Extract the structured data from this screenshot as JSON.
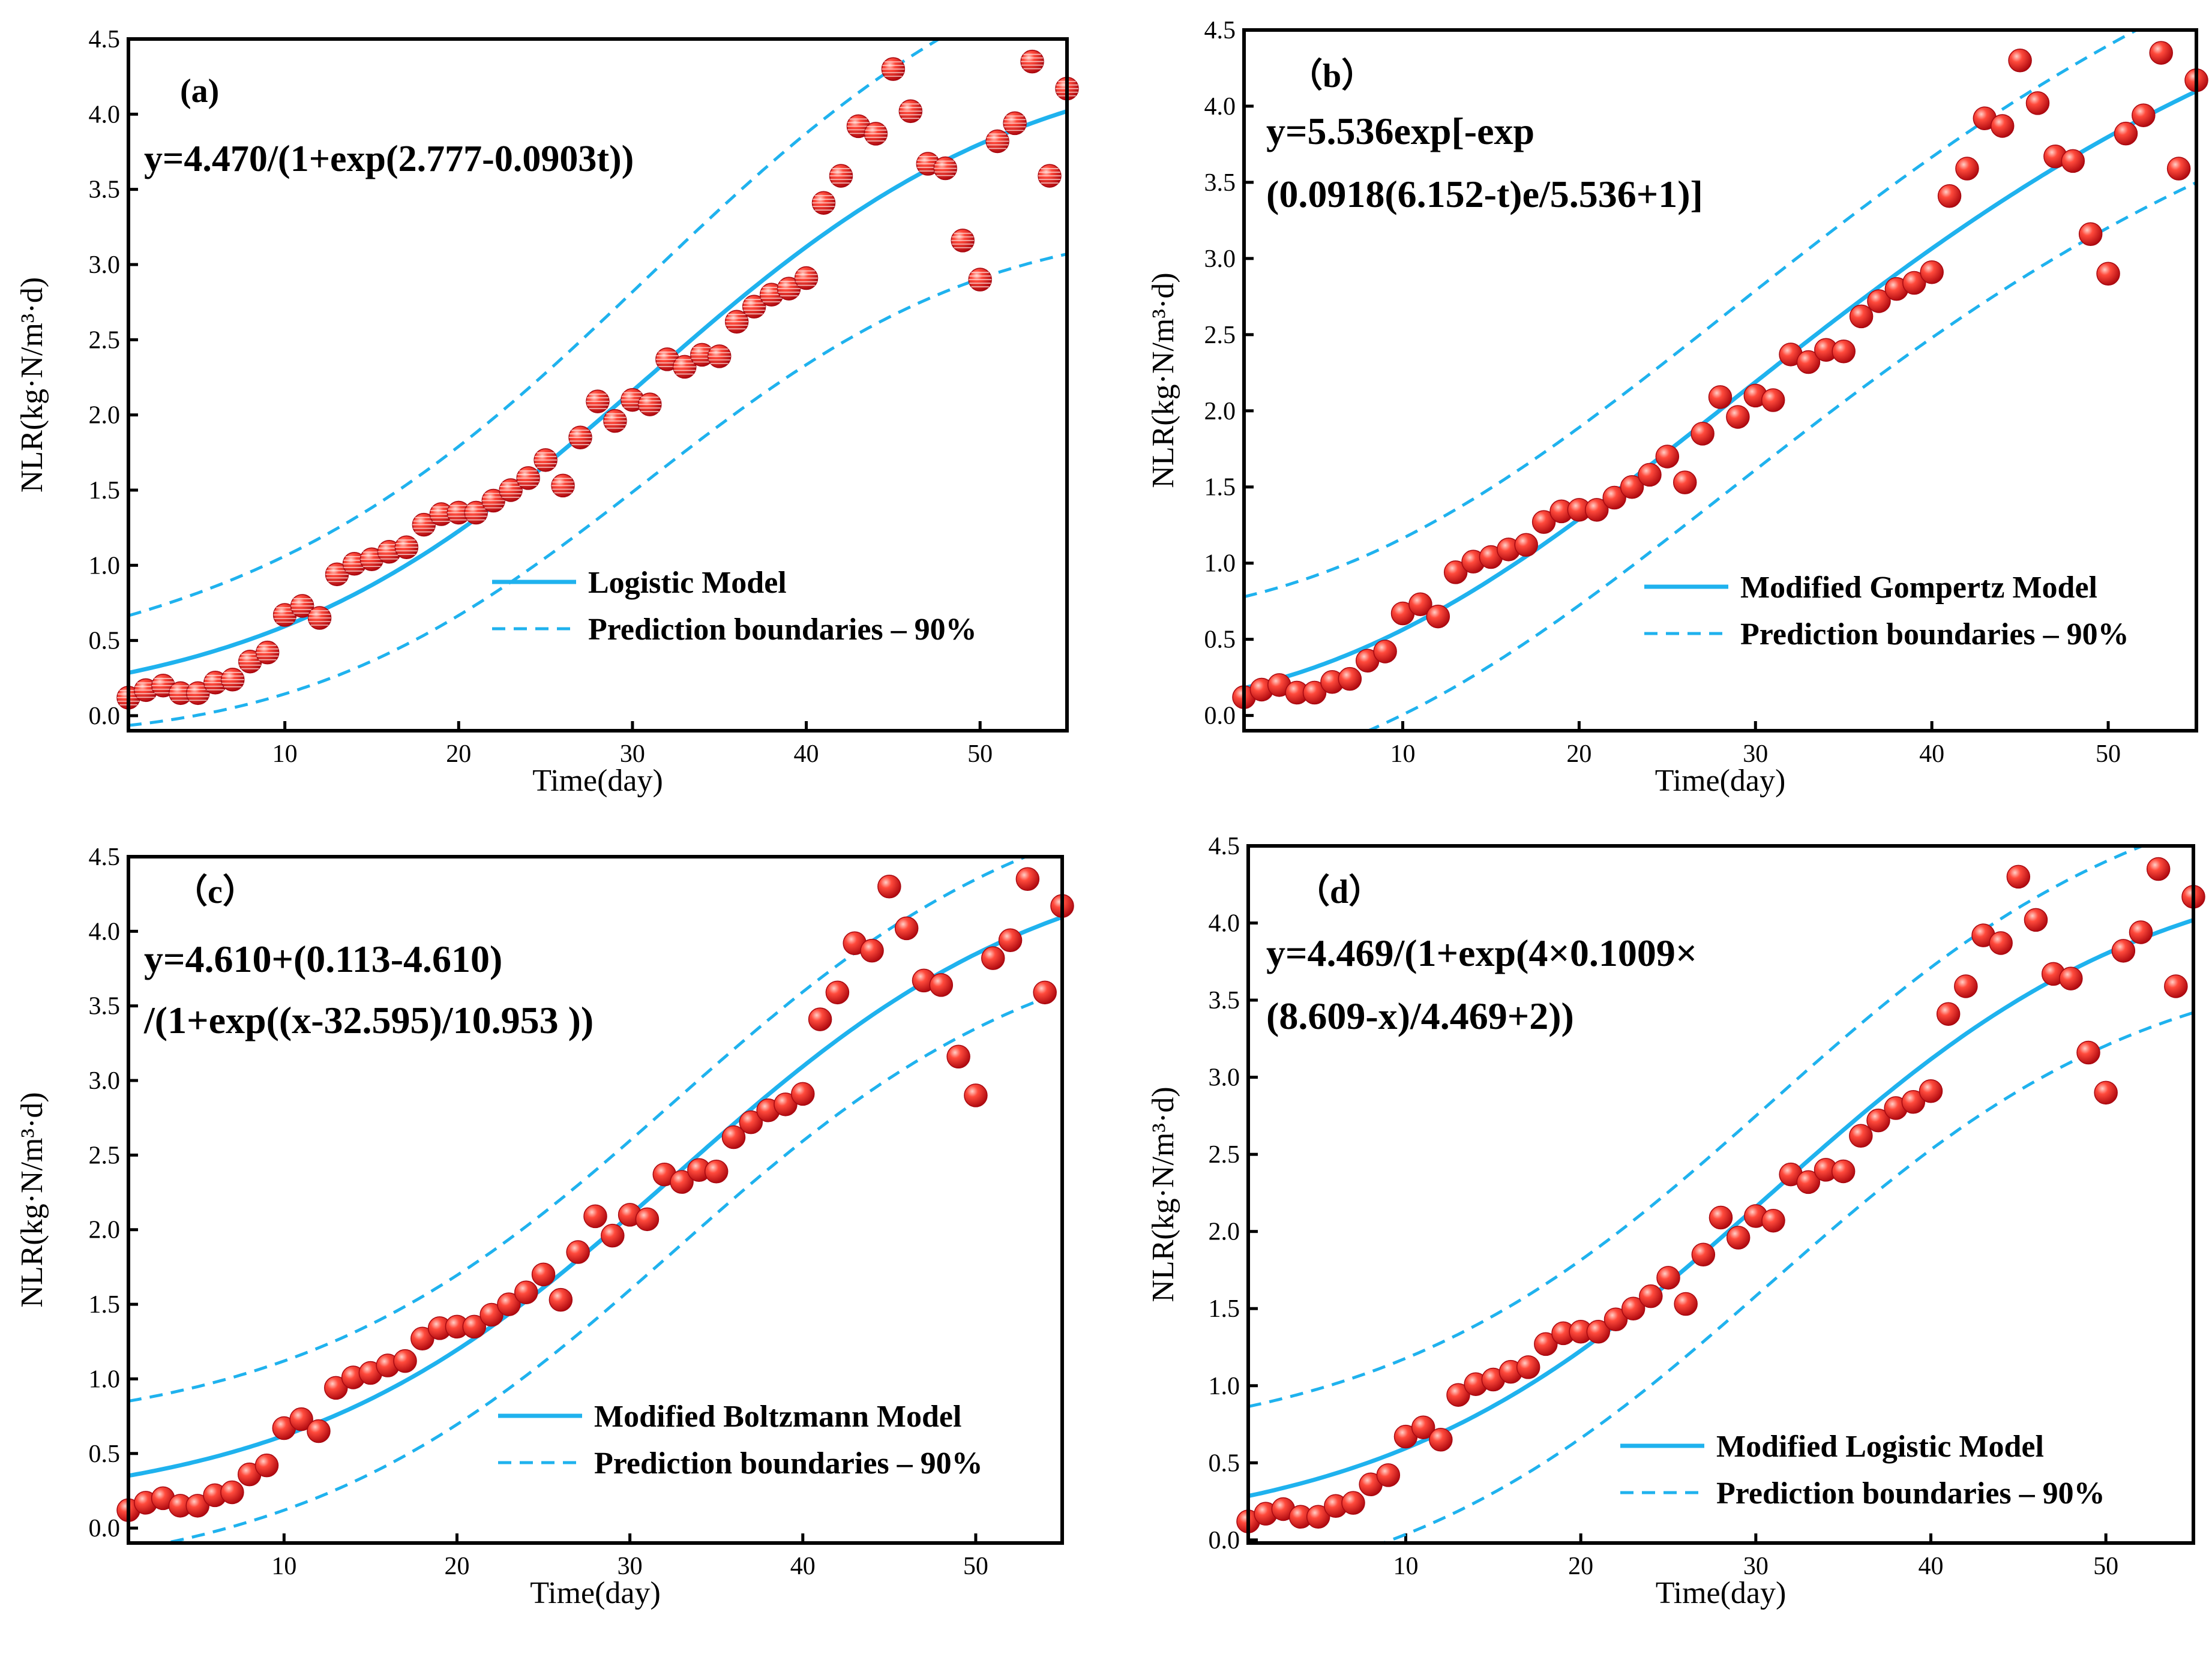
{
  "style": {
    "fit_color": "#1fb2ee",
    "point_color": "#e8151b",
    "point_highlight": "#ffb8b0"
  },
  "chart_data": [
    {
      "id": "a",
      "type": "scatter",
      "panel_label": "(a)",
      "equation_lines": [
        "y=4.470/(1+exp(2.777-0.0903t))"
      ],
      "xlabel": "Time(day)",
      "ylabel": "NLR(kg·N/m³·d)",
      "xlim": [
        1,
        55
      ],
      "ylim": [
        -0.1,
        4.5
      ],
      "xticks": [
        10,
        20,
        30,
        40,
        50
      ],
      "yticks": [
        "0.0",
        "0.5",
        "1.0",
        "1.5",
        "2.0",
        "2.5",
        "3.0",
        "3.5",
        "4.0",
        "4.5"
      ],
      "legend": [
        "Logistic Model",
        "Prediction boundaries – 90%"
      ],
      "legend_position": "lower-right",
      "model": {
        "kind": "logistic",
        "A": 4.47,
        "b": 2.777,
        "k": 0.0903
      },
      "bound_offsets": {
        "lo": [
          -0.35,
          -0.95
        ],
        "hi": [
          0.38,
          0.9
        ]
      },
      "x": [
        1,
        2,
        3,
        4,
        5,
        6,
        7,
        8,
        9,
        10,
        11,
        12,
        13,
        14,
        15,
        16,
        17,
        18,
        19,
        20,
        21,
        22,
        23,
        24,
        25,
        26,
        27,
        28,
        29,
        30,
        31,
        32,
        33,
        34,
        35,
        36,
        37,
        38,
        39,
        40,
        41,
        42,
        43,
        44,
        45,
        46,
        47,
        48,
        49,
        50,
        51,
        52,
        53,
        54,
        55
      ],
      "y": [
        0.12,
        0.17,
        0.2,
        0.15,
        0.15,
        0.22,
        0.24,
        0.36,
        0.42,
        0.67,
        0.73,
        0.65,
        0.94,
        1.01,
        1.04,
        1.09,
        1.12,
        1.27,
        1.34,
        1.35,
        1.35,
        1.43,
        1.5,
        1.58,
        1.7,
        1.53,
        1.85,
        2.09,
        1.96,
        2.1,
        2.07,
        2.37,
        2.32,
        2.4,
        2.39,
        2.62,
        2.72,
        2.8,
        2.84,
        2.91,
        3.41,
        3.59,
        3.92,
        3.87,
        4.3,
        4.02,
        3.67,
        3.64,
        3.16,
        2.9,
        3.82,
        3.94,
        4.35,
        3.59,
        4.17
      ]
    },
    {
      "id": "b",
      "type": "scatter",
      "panel_label": "（b）",
      "equation_lines": [
        "y=5.536exp[-exp",
        "(0.0918(6.152-t)e/5.536+1)]"
      ],
      "xlabel": "Time(day)",
      "ylabel": "NLR(kg·N/m³·d)",
      "xlim": [
        1,
        55
      ],
      "ylim": [
        -0.1,
        4.5
      ],
      "xticks": [
        10,
        20,
        30,
        40,
        50
      ],
      "yticks": [
        "0.0",
        "0.5",
        "1.0",
        "1.5",
        "2.0",
        "2.5",
        "3.0",
        "3.5",
        "4.0",
        "4.5"
      ],
      "legend": [
        "Modified Gompertz Model",
        "Prediction boundaries – 90%"
      ],
      "legend_position": "lower-right",
      "model": {
        "kind": "gompertz",
        "A": 5.536,
        "mu": 0.0918,
        "lambda": 6.152
      },
      "bound_offsets": {
        "lo": [
          -0.55,
          -0.6
        ],
        "hi": [
          0.6,
          0.6
        ]
      },
      "x": [
        1,
        2,
        3,
        4,
        5,
        6,
        7,
        8,
        9,
        10,
        11,
        12,
        13,
        14,
        15,
        16,
        17,
        18,
        19,
        20,
        21,
        22,
        23,
        24,
        25,
        26,
        27,
        28,
        29,
        30,
        31,
        32,
        33,
        34,
        35,
        36,
        37,
        38,
        39,
        40,
        41,
        42,
        43,
        44,
        45,
        46,
        47,
        48,
        49,
        50,
        51,
        52,
        53,
        54,
        55
      ],
      "y": [
        0.12,
        0.17,
        0.2,
        0.15,
        0.15,
        0.22,
        0.24,
        0.36,
        0.42,
        0.67,
        0.73,
        0.65,
        0.94,
        1.01,
        1.04,
        1.09,
        1.12,
        1.27,
        1.34,
        1.35,
        1.35,
        1.43,
        1.5,
        1.58,
        1.7,
        1.53,
        1.85,
        2.09,
        1.96,
        2.1,
        2.07,
        2.37,
        2.32,
        2.4,
        2.39,
        2.62,
        2.72,
        2.8,
        2.84,
        2.91,
        3.41,
        3.59,
        3.92,
        3.87,
        4.3,
        4.02,
        3.67,
        3.64,
        3.16,
        2.9,
        3.82,
        3.94,
        4.35,
        3.59,
        4.17
      ]
    },
    {
      "id": "c",
      "type": "scatter",
      "panel_label": "（c）",
      "equation_lines": [
        "y=4.610+(0.113-4.610)",
        "/(1+exp((x-32.595)/10.953 ))"
      ],
      "xlabel": "Time(day)",
      "ylabel": "NLR(kg·N/m³·d)",
      "xlim": [
        1,
        55
      ],
      "ylim": [
        -0.1,
        4.5
      ],
      "xticks": [
        10,
        20,
        30,
        40,
        50
      ],
      "yticks": [
        "0.0",
        "0.5",
        "1.0",
        "1.5",
        "2.0",
        "2.5",
        "3.0",
        "3.5",
        "4.0",
        "4.5"
      ],
      "legend": [
        "Modified Boltzmann Model",
        "Prediction boundaries – 90%"
      ],
      "legend_position": "lower-right",
      "model": {
        "kind": "boltzmann",
        "A1": 0.113,
        "A2": 4.61,
        "x0": 32.595,
        "dx": 10.953
      },
      "bound_offsets": {
        "lo": [
          -0.5,
          -0.5
        ],
        "hi": [
          0.5,
          0.5
        ]
      },
      "x": [
        1,
        2,
        3,
        4,
        5,
        6,
        7,
        8,
        9,
        10,
        11,
        12,
        13,
        14,
        15,
        16,
        17,
        18,
        19,
        20,
        21,
        22,
        23,
        24,
        25,
        26,
        27,
        28,
        29,
        30,
        31,
        32,
        33,
        34,
        35,
        36,
        37,
        38,
        39,
        40,
        41,
        42,
        43,
        44,
        45,
        46,
        47,
        48,
        49,
        50,
        51,
        52,
        53,
        54,
        55
      ],
      "y": [
        0.12,
        0.17,
        0.2,
        0.15,
        0.15,
        0.22,
        0.24,
        0.36,
        0.42,
        0.67,
        0.73,
        0.65,
        0.94,
        1.01,
        1.04,
        1.09,
        1.12,
        1.27,
        1.34,
        1.35,
        1.35,
        1.43,
        1.5,
        1.58,
        1.7,
        1.53,
        1.85,
        2.09,
        1.96,
        2.1,
        2.07,
        2.37,
        2.32,
        2.4,
        2.39,
        2.62,
        2.72,
        2.8,
        2.84,
        2.91,
        3.41,
        3.59,
        3.92,
        3.87,
        4.3,
        4.02,
        3.67,
        3.64,
        3.16,
        2.9,
        3.82,
        3.94,
        4.35,
        3.59,
        4.17
      ]
    },
    {
      "id": "d",
      "type": "scatter",
      "panel_label": "（d）",
      "equation_lines": [
        "y=4.469/(1+exp(4×0.1009×",
        "(8.609-x)/4.469+2))"
      ],
      "xlabel": "Time(day)",
      "ylabel": "NLR(kg·N/m³·d)",
      "xlim": [
        1,
        55
      ],
      "ylim": [
        -0.02,
        4.5
      ],
      "xticks": [
        10,
        20,
        30,
        40,
        50
      ],
      "yticks": [
        "0.0",
        "0.5",
        "1.0",
        "1.5",
        "2.0",
        "2.5",
        "3.0",
        "3.5",
        "4.0",
        "4.5"
      ],
      "legend": [
        "Modified Logistic Model",
        "Prediction boundaries – 90%"
      ],
      "legend_position": "lower-right",
      "model": {
        "kind": "modlogistic",
        "A": 4.469,
        "mu": 0.1009,
        "lambda": 8.609
      },
      "bound_offsets": {
        "lo": [
          -0.55,
          -0.6
        ],
        "hi": [
          0.58,
          0.6
        ]
      },
      "x": [
        1,
        2,
        3,
        4,
        5,
        6,
        7,
        8,
        9,
        10,
        11,
        12,
        13,
        14,
        15,
        16,
        17,
        18,
        19,
        20,
        21,
        22,
        23,
        24,
        25,
        26,
        27,
        28,
        29,
        30,
        31,
        32,
        33,
        34,
        35,
        36,
        37,
        38,
        39,
        40,
        41,
        42,
        43,
        44,
        45,
        46,
        47,
        48,
        49,
        50,
        51,
        52,
        53,
        54,
        55
      ],
      "y": [
        0.12,
        0.17,
        0.2,
        0.15,
        0.15,
        0.22,
        0.24,
        0.36,
        0.42,
        0.67,
        0.73,
        0.65,
        0.94,
        1.01,
        1.04,
        1.09,
        1.12,
        1.27,
        1.34,
        1.35,
        1.35,
        1.43,
        1.5,
        1.58,
        1.7,
        1.53,
        1.85,
        2.09,
        1.96,
        2.1,
        2.07,
        2.37,
        2.32,
        2.4,
        2.39,
        2.62,
        2.72,
        2.8,
        2.84,
        2.91,
        3.41,
        3.59,
        3.92,
        3.87,
        4.3,
        4.02,
        3.67,
        3.64,
        3.16,
        2.9,
        3.82,
        3.94,
        4.35,
        3.59,
        4.17
      ]
    }
  ]
}
